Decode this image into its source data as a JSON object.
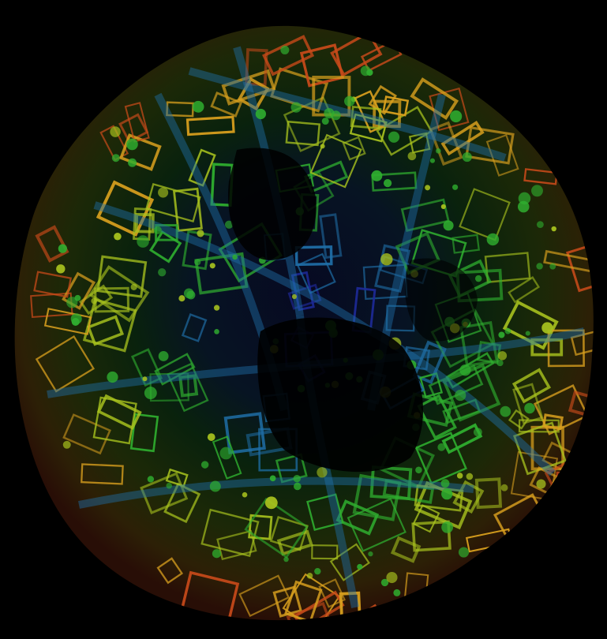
{
  "scene": {
    "subject": "lidar-point-cloud-city-globe",
    "colors": {
      "background": "#000000",
      "low": "#1e2a9a",
      "mid_low": "#1f6fa8",
      "mid": "#2fae2f",
      "mid_high": "#a8c21e",
      "high": "#d9a01e",
      "highest": "#c84a1a"
    }
  }
}
